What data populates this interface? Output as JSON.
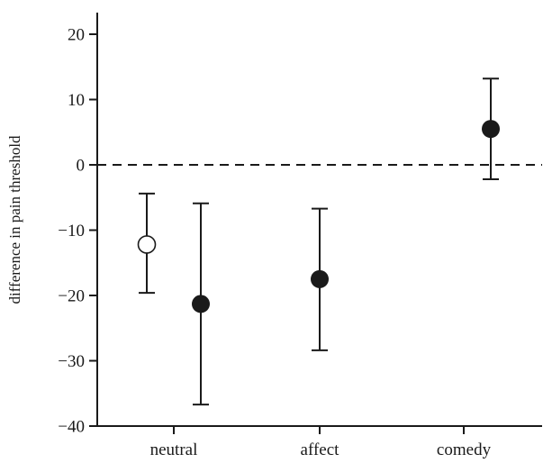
{
  "chart_data": {
    "type": "scatter",
    "title": "",
    "xlabel": "",
    "ylabel": "difference in pain threshold",
    "ylim": [
      -40,
      23
    ],
    "yticks": [
      20,
      10,
      0,
      -10,
      -20,
      -30,
      -40
    ],
    "categories": [
      "neutral",
      "affect",
      "comedy"
    ],
    "reference_line": {
      "y": 0,
      "style": "dashed"
    },
    "grid": false,
    "legend": "none",
    "points": [
      {
        "category": "neutral",
        "offset": -0.15,
        "y": -12.2,
        "ymin": -19.6,
        "ymax": -4.4,
        "marker": "open"
      },
      {
        "category": "neutral",
        "offset": 0.15,
        "y": -21.3,
        "ymin": -36.7,
        "ymax": -5.9,
        "marker": "filled"
      },
      {
        "category": "affect",
        "offset": 0.0,
        "y": -17.5,
        "ymin": -28.4,
        "ymax": -6.7,
        "marker": "filled"
      },
      {
        "category": "comedy",
        "offset": 0.15,
        "y": 5.5,
        "ymin": -2.2,
        "ymax": 13.2,
        "marker": "filled"
      }
    ],
    "colors": {
      "ink": "#1a1a1a",
      "open_fill": "#ffffff"
    }
  }
}
